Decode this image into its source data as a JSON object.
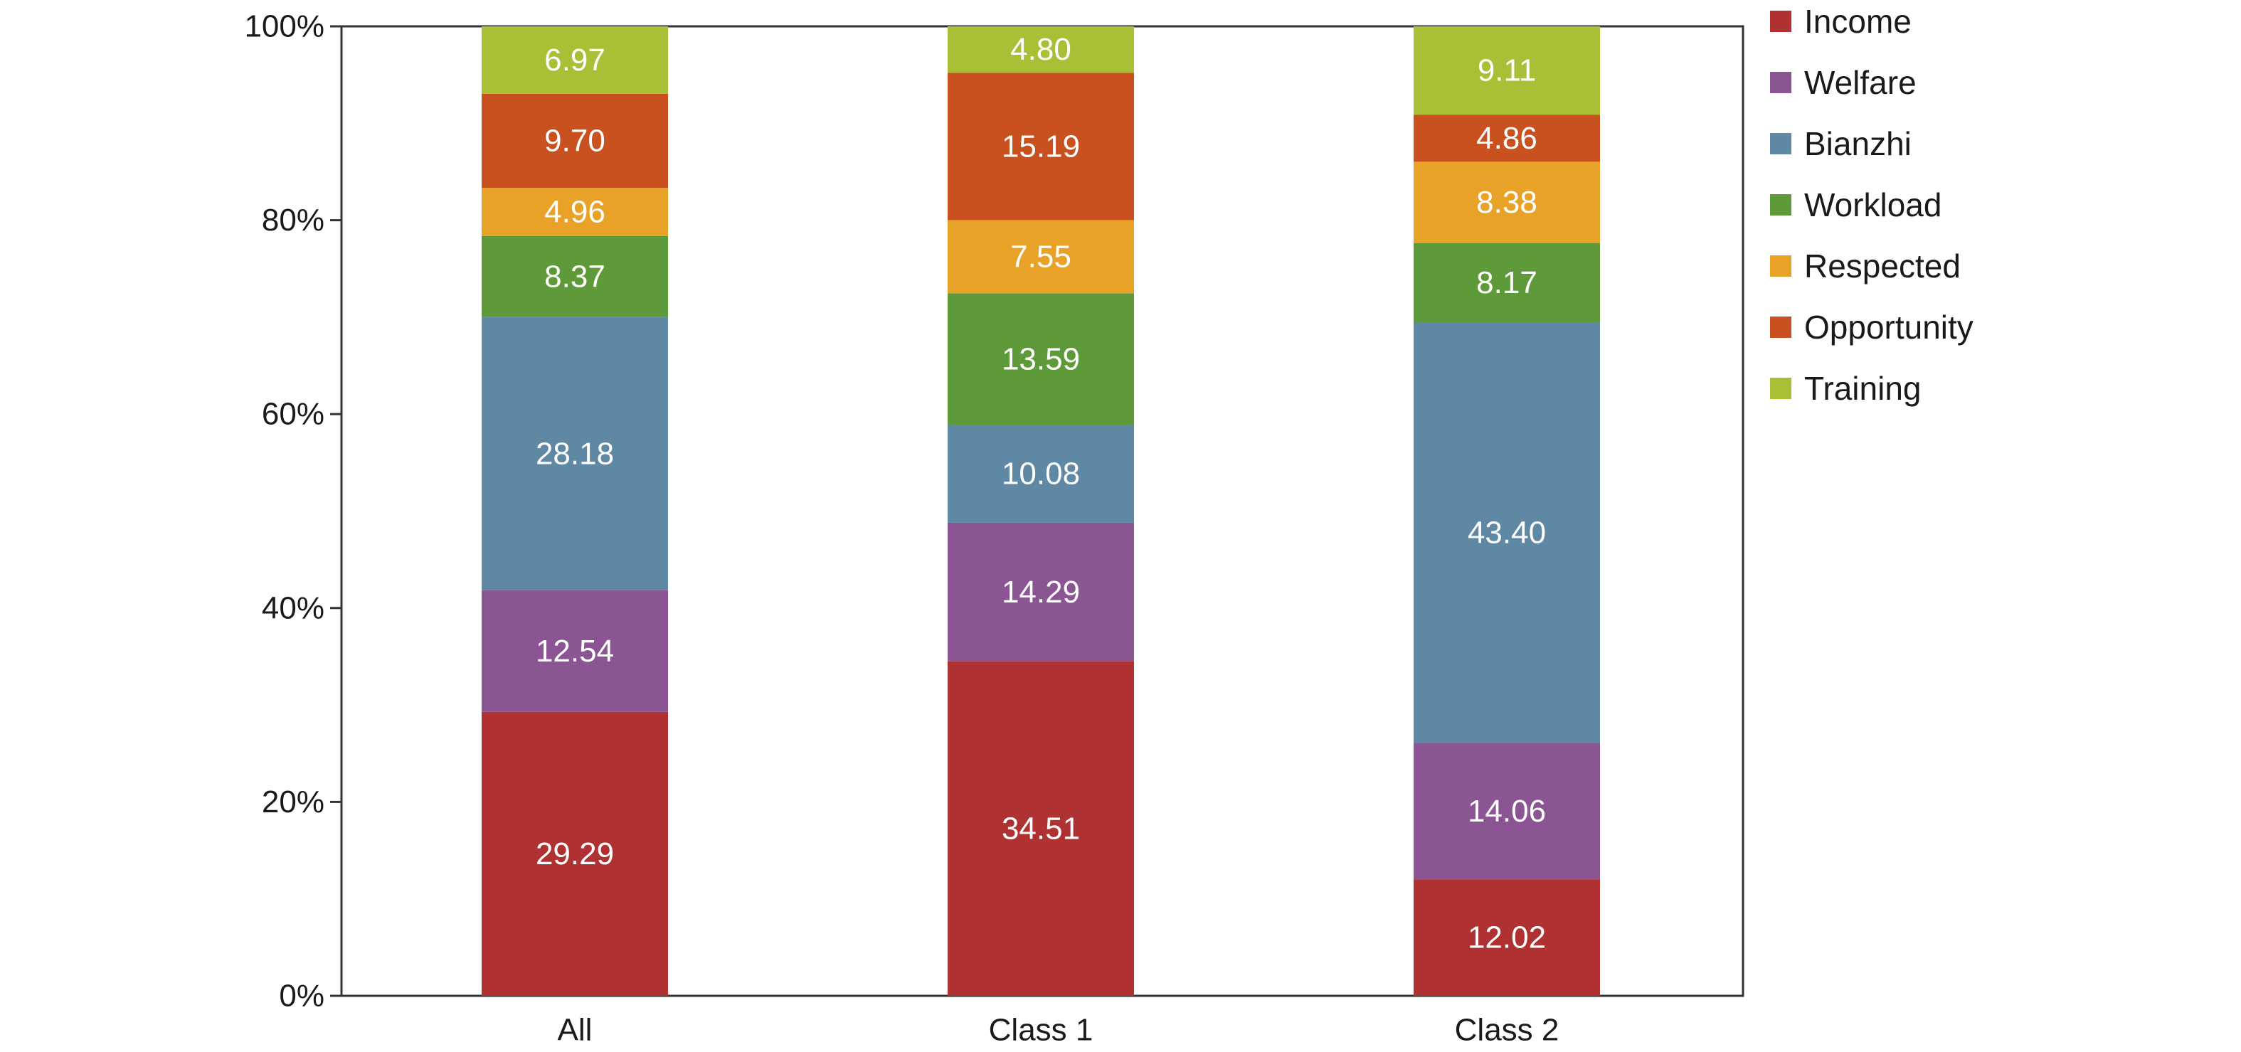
{
  "chart_data": {
    "type": "bar",
    "stacked": true,
    "normalized_percent": true,
    "categories": [
      "All",
      "Class 1",
      "Class 2"
    ],
    "series": [
      {
        "name": "Income",
        "color": "#b03132",
        "values": [
          29.29,
          34.51,
          12.02
        ]
      },
      {
        "name": "Welfare",
        "color": "#8a5592",
        "values": [
          12.54,
          14.29,
          14.06
        ]
      },
      {
        "name": "Bianzhi",
        "color": "#5f88a5",
        "values": [
          28.18,
          10.08,
          43.4
        ]
      },
      {
        "name": "Workload",
        "color": "#5e9a3a",
        "values": [
          8.37,
          13.59,
          8.17
        ]
      },
      {
        "name": "Respected",
        "color": "#e8a228",
        "values": [
          4.96,
          7.55,
          8.38
        ]
      },
      {
        "name": "Opportunity",
        "color": "#c9501f",
        "values": [
          9.7,
          15.19,
          4.86
        ]
      },
      {
        "name": "Training",
        "color": "#a8c035",
        "values": [
          6.97,
          4.8,
          9.11
        ]
      }
    ],
    "y_ticks": [
      "0%",
      "20%",
      "40%",
      "60%",
      "80%",
      "100%"
    ],
    "ylim": [
      0,
      100
    ],
    "title": "",
    "xlabel": "",
    "ylabel": "",
    "grid": false,
    "legend": "right"
  }
}
